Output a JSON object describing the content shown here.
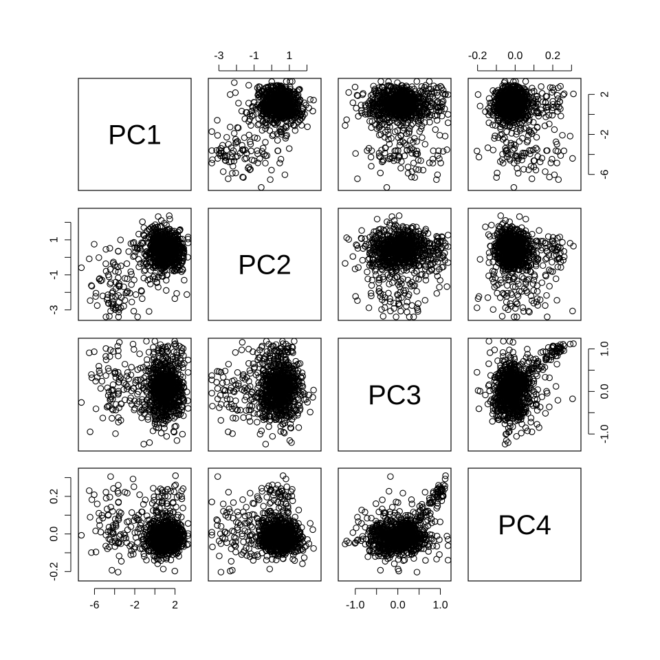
{
  "chart_data": {
    "type": "scatter",
    "kind": "pairs-matrix",
    "variables": [
      "PC1",
      "PC2",
      "PC3",
      "PC4"
    ],
    "ranges": {
      "PC1": [
        -7.6,
        3.6
      ],
      "PC2": [
        -3.6,
        2.8
      ],
      "PC3": [
        -1.4,
        1.25
      ],
      "PC4": [
        -0.25,
        0.35
      ]
    },
    "ticks": {
      "PC1": {
        "values": [
          -6,
          -4,
          -2,
          0,
          2
        ],
        "labels": [
          "-6",
          "",
          "-2",
          "",
          "2"
        ]
      },
      "PC2": {
        "values": [
          -3,
          -2,
          -1,
          0,
          1,
          2
        ],
        "labels": [
          "-3",
          "",
          "-1",
          "",
          "1",
          ""
        ]
      },
      "PC3": {
        "values": [
          -1.0,
          -0.5,
          0.0,
          0.5,
          1.0
        ],
        "labels": [
          "-1.0",
          "",
          "0.0",
          "",
          "1.0"
        ]
      },
      "PC4": {
        "values": [
          -0.2,
          -0.1,
          0.0,
          0.1,
          0.2,
          0.3
        ],
        "labels": [
          "-0.2",
          "",
          "0.0",
          "",
          "0.2",
          ""
        ]
      }
    },
    "axis_placement": {
      "bottom": [
        "PC1",
        null,
        "PC3",
        null
      ],
      "top": [
        null,
        "PC2",
        null,
        "PC4"
      ],
      "left": [
        null,
        "PC2",
        null,
        "PC4"
      ],
      "right": [
        "PC1",
        null,
        "PC3",
        null
      ]
    },
    "point_style": "open-circle",
    "n_points": 900,
    "grid": false,
    "legend": "none"
  }
}
